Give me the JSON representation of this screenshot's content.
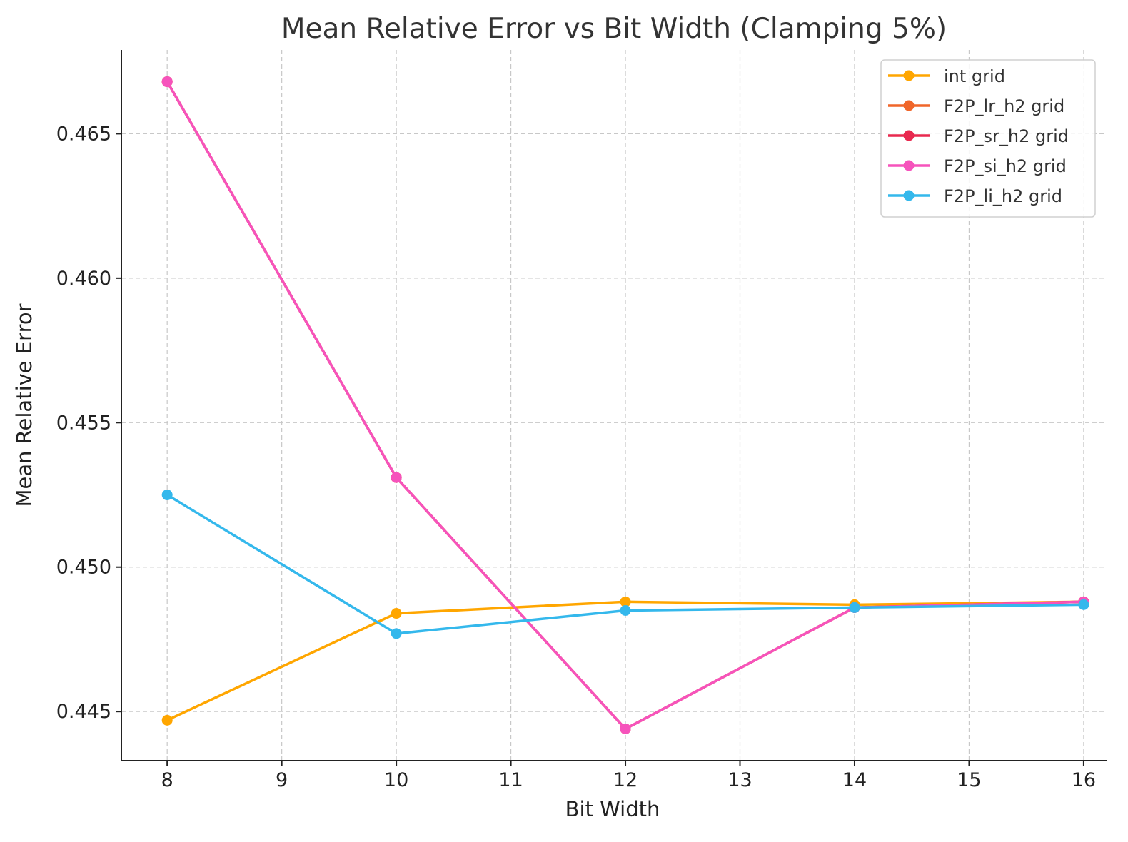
{
  "chart_data": {
    "type": "line",
    "title": "Mean Relative Error vs Bit Width (Clamping 5%)",
    "xlabel": "Bit Width",
    "ylabel": "Mean Relative Error",
    "x": [
      8,
      10,
      12,
      14,
      16
    ],
    "xticks": [
      8,
      9,
      10,
      11,
      12,
      13,
      14,
      15,
      16
    ],
    "xtick_labels": [
      "8",
      "9",
      "10",
      "11",
      "12",
      "13",
      "14",
      "15",
      "16"
    ],
    "yticks": [
      0.445,
      0.45,
      0.455,
      0.46,
      0.465
    ],
    "ytick_labels": [
      "0.445",
      "0.450",
      "0.455",
      "0.460",
      "0.465"
    ],
    "xlim": [
      7.6,
      16.2
    ],
    "ylim": [
      0.4433,
      0.4679
    ],
    "grid": true,
    "legend_position": "top-right",
    "series": [
      {
        "name": "int grid",
        "color": "#FFA600",
        "values": [
          0.4447,
          0.4484,
          0.4488,
          0.4487,
          0.4488
        ]
      },
      {
        "name": "F2P_lr_h2 grid",
        "color": "#F0662A",
        "values": [
          0.4668,
          0.4531,
          0.4444,
          0.4486,
          0.4488
        ]
      },
      {
        "name": "F2P_sr_h2 grid",
        "color": "#E8294F",
        "values": [
          0.4668,
          0.4531,
          0.4444,
          0.4486,
          0.4488
        ]
      },
      {
        "name": "F2P_si_h2 grid",
        "color": "#F653BC",
        "values": [
          0.4668,
          0.4531,
          0.4444,
          0.4486,
          0.4488
        ]
      },
      {
        "name": "F2P_li_h2 grid",
        "color": "#34B8EC",
        "values": [
          0.4525,
          0.4477,
          0.4485,
          0.4486,
          0.4487
        ]
      }
    ]
  }
}
